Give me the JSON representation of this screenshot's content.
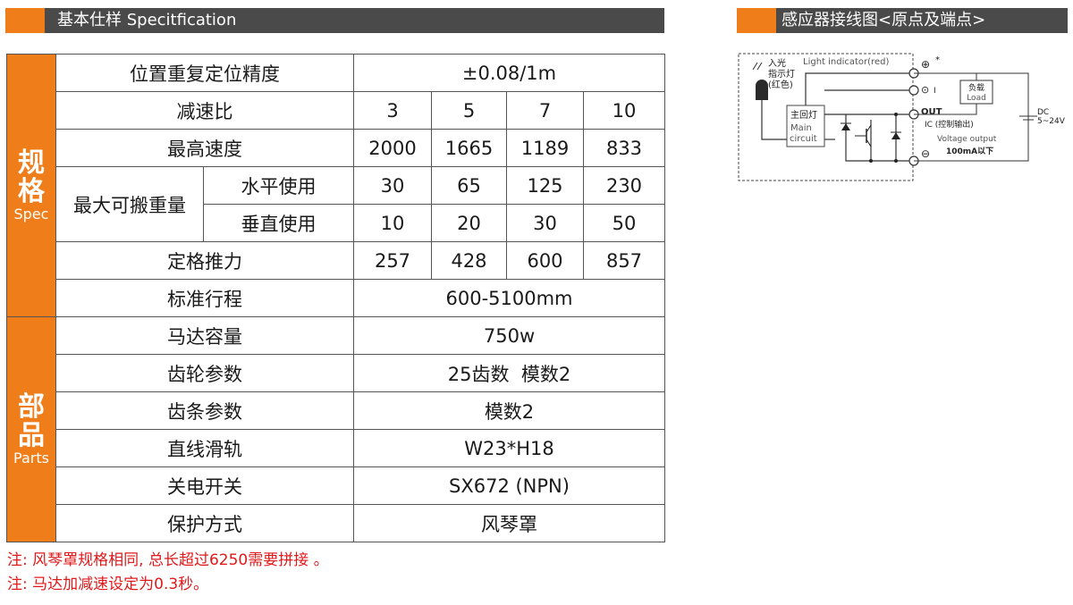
{
  "header_left": {
    "title": "基本仕样 Specitfication"
  },
  "header_right": {
    "title": "感应器接线图<原点及端点>"
  },
  "spec_group": {
    "title_1": "规",
    "title_2": "格",
    "subtitle": "Spec"
  },
  "parts_group": {
    "title_1": "部",
    "title_2": "品",
    "subtitle": "Parts"
  },
  "spec_rows": {
    "precision": {
      "label": "位置重复定位精度",
      "value": "±0.08/1m"
    },
    "ratio": {
      "label": "减速比",
      "values": [
        "3",
        "5",
        "7",
        "10"
      ]
    },
    "max_speed": {
      "label": "最高速度",
      "values": [
        "2000",
        "1665",
        "1189",
        "833"
      ]
    },
    "max_load": {
      "label": "最大可搬重量",
      "horizontal": {
        "label": "水平使用",
        "values": [
          "30",
          "65",
          "125",
          "230"
        ]
      },
      "vertical": {
        "label": "垂直使用",
        "values": [
          "10",
          "20",
          "30",
          "50"
        ]
      }
    },
    "thrust": {
      "label": "定格推力",
      "values": [
        "257",
        "428",
        "600",
        "857"
      ]
    },
    "stroke": {
      "label": "标准行程",
      "value": "600-5100mm"
    }
  },
  "parts_rows": {
    "motor": {
      "label": "马达容量",
      "value": "750w"
    },
    "gear": {
      "label": "齿轮参数",
      "value": "25齿数  模数2"
    },
    "rack": {
      "label": "齿条参数",
      "value": "模数2"
    },
    "rail": {
      "label": "直线滑轨",
      "value": "W23*H18"
    },
    "switch": {
      "label": "关电开关",
      "value": "SX672 (NPN)"
    },
    "protection": {
      "label": "保护方式",
      "value": "风琴罩"
    }
  },
  "notes": {
    "note1": "注: 风琴罩规格相同, 总长超过6250需要拼接 。",
    "note2": "注: 马达加减速设定为0.3秒。"
  },
  "diagram": {
    "led_label_1": "入光",
    "led_label_2": "指示灯",
    "led_label_3": "(红色)",
    "light_indicator": "Light indicator(red)",
    "main_1": "主回灯",
    "main_2": "Main",
    "main_3": "circuit",
    "plus": "⊕",
    "star": "*",
    "term2": "⊙",
    "term2_suffix": "I",
    "out": "OUT",
    "minus": "⊖",
    "load_1": "负载",
    "load_2": "Load",
    "ic": "IC (控制输出)",
    "voltage": "Voltage output",
    "current": "100mA以下",
    "dc_1": "DC",
    "dc_2": "5~24V"
  },
  "colors": {
    "accent": "#ef7d1a",
    "header_bg": "#4a4a4a",
    "note_red": "#e0191b"
  }
}
